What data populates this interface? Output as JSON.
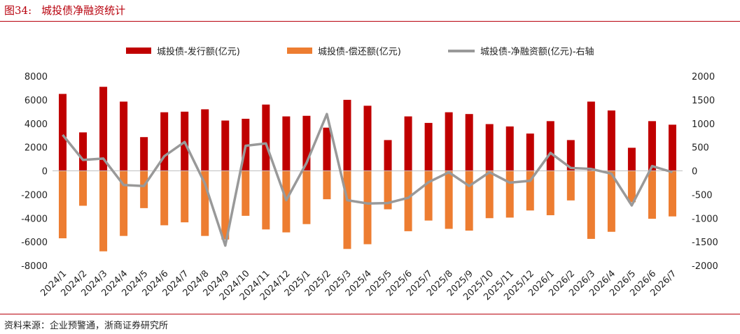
{
  "figure": {
    "number": "图34:",
    "title": "城投债净融资统计",
    "source": "资料来源：企业预警通，浙商证券研究所"
  },
  "colors": {
    "issuance": "#c00000",
    "repayment": "#ed7d31",
    "net": "#999999",
    "accent": "#b8000c"
  },
  "chart_data": {
    "type": "bar",
    "title": "",
    "categories": [
      "2024/1",
      "2024/2",
      "2024/3",
      "2024/4",
      "2024/5",
      "2024/6",
      "2024/7",
      "2024/8",
      "2024/9",
      "2024/10",
      "2024/11",
      "2024/12",
      "2025/1",
      "2025/2",
      "2025/3",
      "2025/4",
      "2025/5",
      "2025/6",
      "2025/7",
      "2025/8",
      "2025/9",
      "2025/10",
      "2025/11",
      "2025/12",
      "2026/1",
      "2026/2",
      "2026/3",
      "2026/4",
      "2026/5",
      "2026/6",
      "2026/7"
    ],
    "series": [
      {
        "name": "城投债-发行额(亿元)",
        "type": "bar",
        "axis": "left",
        "values": [
          6500,
          3250,
          7100,
          5850,
          2850,
          4950,
          5000,
          5200,
          4250,
          4400,
          5600,
          4600,
          4650,
          3650,
          6000,
          5500,
          2600,
          4600,
          4050,
          4950,
          4800,
          3950,
          3750,
          3150,
          4200,
          2600,
          5850,
          5100,
          1950,
          4200,
          3900
        ]
      },
      {
        "name": "城投债-偿还额(亿元)",
        "type": "bar",
        "axis": "left",
        "values": [
          -5700,
          -2950,
          -6800,
          -5500,
          -3150,
          -4600,
          -4350,
          -5500,
          -5800,
          -3800,
          -4950,
          -5200,
          -4500,
          -2400,
          -6600,
          -6200,
          -3250,
          -5100,
          -4200,
          -4900,
          -5050,
          -4000,
          -3950,
          -3350,
          -3750,
          -2500,
          -5750,
          -5150,
          -2650,
          -4050,
          -3850
        ]
      },
      {
        "name": "城投债-净融资额(亿元)-右轴",
        "type": "line",
        "axis": "right",
        "values": [
          760,
          230,
          260,
          -300,
          -320,
          310,
          610,
          -270,
          -1580,
          530,
          580,
          -620,
          170,
          1200,
          -620,
          -690,
          -680,
          -570,
          -240,
          -30,
          -320,
          -30,
          -250,
          -210,
          380,
          60,
          40,
          -60,
          -730,
          100,
          -30
        ]
      }
    ],
    "yLeft": {
      "min": -8000,
      "max": 8000,
      "step": 2000,
      "ticks": [
        "8000",
        "6000",
        "4000",
        "2000",
        "0",
        "-2000",
        "-4000",
        "-6000",
        "-8000"
      ]
    },
    "yRight": {
      "min": -2000,
      "max": 2000,
      "step": 500,
      "ticks": [
        "2000",
        "1500",
        "1000",
        "500",
        "0",
        "-500",
        "-1000",
        "-1500",
        "-2000"
      ]
    },
    "grid": false,
    "legend_position": "top"
  }
}
